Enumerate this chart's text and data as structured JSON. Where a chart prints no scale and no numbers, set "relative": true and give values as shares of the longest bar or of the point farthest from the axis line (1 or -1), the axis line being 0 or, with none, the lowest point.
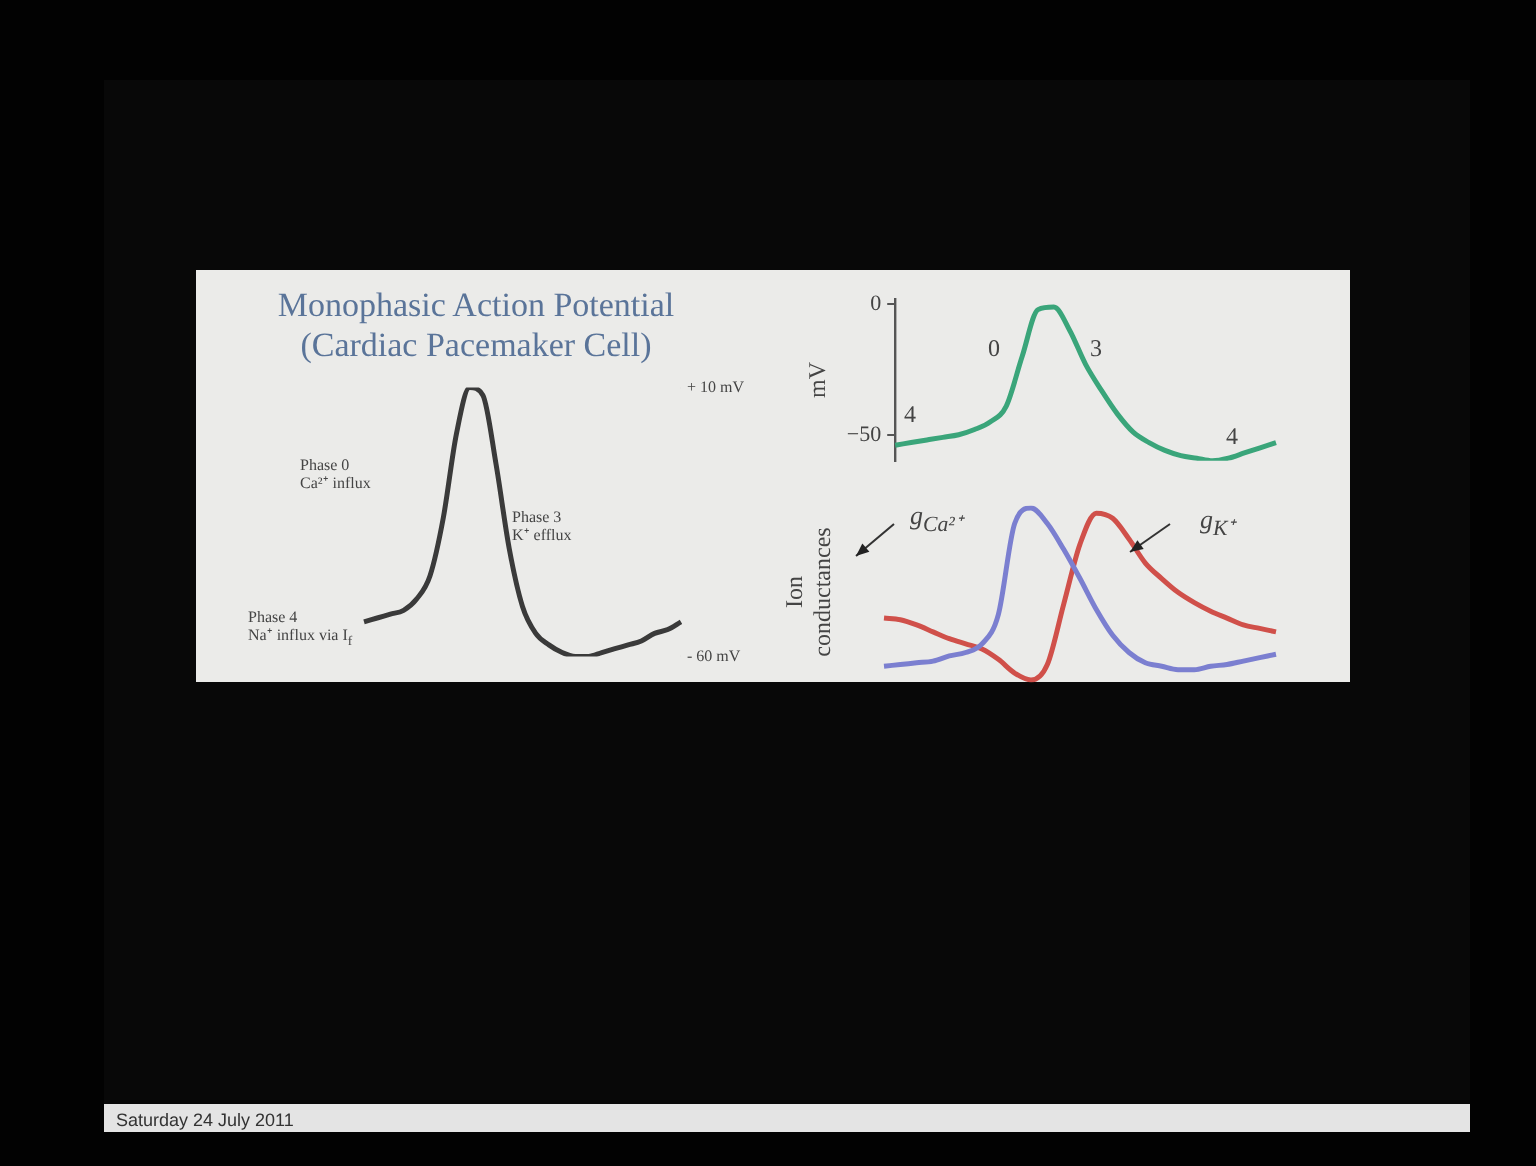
{
  "chart_data": [
    {
      "type": "line",
      "title": "Monophasic Action Potential\n(Cardiac Pacemaker Cell)",
      "categories": [
        null,
        null,
        null,
        null,
        null,
        null,
        null,
        null,
        null,
        null,
        null,
        null,
        null,
        null,
        null,
        null,
        null,
        null,
        null,
        null,
        null,
        null,
        null,
        null,
        null
      ],
      "series": [
        {
          "color": "#3a3a3a",
          "values": [
            -51,
            -50,
            -49,
            -48,
            -45,
            -39,
            -24,
            -2,
            10,
            8,
            -10,
            -32,
            -47,
            -54,
            -57,
            -59,
            -60,
            -60,
            -59,
            -58,
            -57,
            -56,
            -54,
            -53,
            -51
          ]
        }
      ],
      "ylim": [
        -60,
        10
      ],
      "yticks": [
        {
          "value": 10,
          "label": "+ 10 mV"
        },
        {
          "value": -60,
          "label": "- 60 mV"
        }
      ],
      "tick_labels": "y",
      "annotations": [
        "Phase 0\nCa²⁺ influx",
        "Phase 3\nK⁺ efflux",
        "Phase 4\nNa⁺ influx via I$_{f}$",
        "Saturday 24 July 2011"
      ]
    },
    {
      "type": "line",
      "ylabel": "mV",
      "categories": [
        null,
        null,
        null,
        null,
        null,
        null,
        null,
        null,
        null,
        null,
        null,
        null,
        null,
        null,
        null,
        null,
        null,
        null,
        null,
        null,
        null,
        null,
        null,
        null,
        null
      ],
      "series": [
        {
          "color": "#3aa57a",
          "values": [
            -54,
            -53,
            -52,
            -51,
            -50,
            -48,
            -45,
            -39,
            -20,
            -2,
            -1,
            -10,
            -23,
            -33,
            -42,
            -49,
            -53,
            -56,
            -58,
            -59,
            -60,
            -59,
            -57,
            -55,
            -53
          ]
        }
      ],
      "ylim": [
        -60,
        2
      ],
      "yticks": [
        {
          "value": 0,
          "label": "0"
        },
        {
          "value": -50,
          "label": "−50"
        }
      ],
      "tick_labels": "y",
      "annotations": [
        "4",
        "0",
        "3",
        "4"
      ]
    },
    {
      "type": "line",
      "ylabel": "Ion\nconductances",
      "relative": true,
      "categories": [
        null,
        null,
        null,
        null,
        null,
        null,
        null,
        null,
        null,
        null,
        null,
        null,
        null,
        null,
        null,
        null,
        null,
        null,
        null,
        null,
        null,
        null,
        null,
        null,
        null
      ],
      "series": [
        {
          "name": "g$_{Ca²⁺}$",
          "color": "#7b7fd0",
          "values": [
            0.08,
            0.09,
            0.1,
            0.11,
            0.14,
            0.16,
            0.21,
            0.38,
            0.91,
            1,
            0.91,
            0.76,
            0.59,
            0.41,
            0.26,
            0.16,
            0.1,
            0.08,
            0.06,
            0.06,
            0.08,
            0.09,
            0.11,
            0.13,
            0.15
          ]
        },
        {
          "name": "g$_{K⁺}$",
          "color": "#d0504a",
          "values": [
            0.36,
            0.35,
            0.32,
            0.28,
            0.24,
            0.21,
            0.18,
            0.12,
            0.04,
            0,
            0.09,
            0.44,
            0.79,
            0.97,
            0.94,
            0.82,
            0.68,
            0.59,
            0.51,
            0.45,
            0.4,
            0.36,
            0.32,
            0.3,
            0.28
          ]
        }
      ]
    }
  ]
}
